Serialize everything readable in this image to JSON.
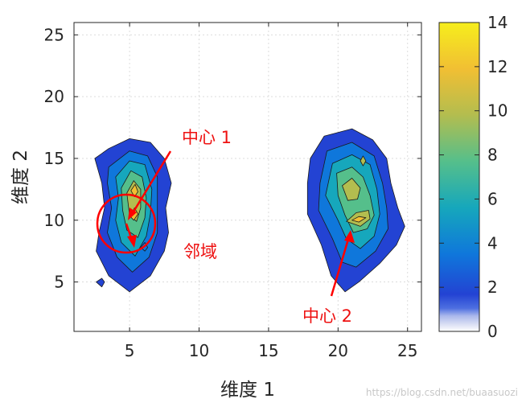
{
  "chart_data": {
    "type": "contour",
    "xlabel": "维度 1",
    "ylabel": "维度 2",
    "xlim": [
      1,
      26
    ],
    "ylim": [
      1,
      26
    ],
    "xticks": [
      5,
      10,
      15,
      20,
      25
    ],
    "yticks": [
      5,
      10,
      15,
      20,
      25
    ],
    "grid": true,
    "colorbar": {
      "colormap": "parula",
      "range": [
        0,
        14
      ],
      "ticks": [
        0,
        2,
        4,
        6,
        8,
        10,
        12,
        14
      ],
      "colors": [
        "#ffffff",
        "#d6dcf3",
        "#aab8ec",
        "#6f8ee8",
        "#3f66e0",
        "#1f4ad6",
        "#0f5bd9",
        "#0f77db",
        "#1092d0",
        "#16a7bc",
        "#2db7a3",
        "#55bf8b",
        "#86c16e",
        "#b3bd4f",
        "#d6b937",
        "#f1bf33",
        "#f8d42a",
        "#f6ee1c"
      ]
    },
    "clusters": [
      {
        "name": "cluster-1",
        "levels": [
          {
            "value": 1,
            "points": [
              [
                2.5,
                15
              ],
              [
                3.5,
                15.8
              ],
              [
                5,
                16.6
              ],
              [
                6.5,
                16.3
              ],
              [
                7.5,
                15
              ],
              [
                8,
                13
              ],
              [
                7.6,
                11
              ],
              [
                7.8,
                9
              ],
              [
                7.5,
                7.5
              ],
              [
                6.5,
                5.5
              ],
              [
                5,
                4.2
              ],
              [
                3.5,
                5.5
              ],
              [
                2.6,
                7.5
              ],
              [
                2.8,
                9
              ],
              [
                3.2,
                11
              ],
              [
                3,
                13
              ]
            ]
          },
          {
            "value": 3,
            "points": [
              [
                3.5,
                14.3
              ],
              [
                5,
                15.6
              ],
              [
                6.3,
                15.2
              ],
              [
                7,
                13.5
              ],
              [
                7,
                11.3
              ],
              [
                7,
                9
              ],
              [
                6.4,
                7
              ],
              [
                5.2,
                5.8
              ],
              [
                4.1,
                7
              ],
              [
                3.4,
                9
              ],
              [
                3.7,
                11
              ],
              [
                3.4,
                13
              ]
            ]
          },
          {
            "value": 5,
            "points": [
              [
                4,
                13.5
              ],
              [
                5,
                14.8
              ],
              [
                6.1,
                14.5
              ],
              [
                6.6,
                12.5
              ],
              [
                6.5,
                10.5
              ],
              [
                6.2,
                8.7
              ],
              [
                5.4,
                7.1
              ],
              [
                4.4,
                8.2
              ],
              [
                4,
                10
              ],
              [
                4.2,
                11.8
              ]
            ]
          },
          {
            "value": 7,
            "points": [
              [
                4.4,
                12.6
              ],
              [
                5.1,
                14
              ],
              [
                5.9,
                13.5
              ],
              [
                6.2,
                11.8
              ],
              [
                6.1,
                10.2
              ],
              [
                5.6,
                8.6
              ],
              [
                4.8,
                9.2
              ],
              [
                4.5,
                10.8
              ]
            ]
          },
          {
            "value": 9,
            "points": [
              [
                4.8,
                12.2
              ],
              [
                5.3,
                13.2
              ],
              [
                5.8,
                12.5
              ],
              [
                5.8,
                11
              ],
              [
                5.5,
                9.9
              ],
              [
                5,
                10.4
              ]
            ]
          },
          {
            "value": 11,
            "points": [
              [
                5.1,
                12.4
              ],
              [
                5.4,
                12.9
              ],
              [
                5.6,
                12.3
              ],
              [
                5.35,
                11.9
              ]
            ]
          },
          {
            "value": 11,
            "points": [
              [
                5.05,
                10.3
              ],
              [
                5.35,
                11
              ],
              [
                5.6,
                10.5
              ],
              [
                5.3,
                10
              ]
            ]
          },
          {
            "value": 1,
            "points": [
              [
                2.6,
                5
              ],
              [
                3,
                5.3
              ],
              [
                3.2,
                5
              ],
              [
                3,
                4.6
              ]
            ]
          },
          {
            "value": 3,
            "points": [
              [
                5.8,
                7.8
              ],
              [
                6.1,
                8.2
              ],
              [
                6.3,
                7.8
              ],
              [
                6.1,
                7.5
              ]
            ]
          }
        ]
      },
      {
        "name": "cluster-2",
        "levels": [
          {
            "value": 1,
            "points": [
              [
                19,
                16.8
              ],
              [
                21,
                17.4
              ],
              [
                22.5,
                16.5
              ],
              [
                23.5,
                15
              ],
              [
                23.8,
                13
              ],
              [
                24.3,
                11
              ],
              [
                24.8,
                9.5
              ],
              [
                24.2,
                8
              ],
              [
                23,
                6.5
              ],
              [
                21.5,
                5
              ],
              [
                20.5,
                4.2
              ],
              [
                19.5,
                5.5
              ],
              [
                18.8,
                8
              ],
              [
                17.8,
                10.5
              ],
              [
                17.8,
                13
              ],
              [
                18,
                15
              ]
            ]
          },
          {
            "value": 3,
            "points": [
              [
                19.2,
                15.6
              ],
              [
                21,
                16.3
              ],
              [
                22.6,
                15.2
              ],
              [
                23.2,
                13
              ],
              [
                23.5,
                11
              ],
              [
                23.6,
                9.3
              ],
              [
                22.7,
                7.5
              ],
              [
                21.3,
                6.2
              ],
              [
                20.3,
                6.6
              ],
              [
                19.6,
                8.5
              ],
              [
                18.6,
                10.8
              ],
              [
                18.7,
                13
              ]
            ]
          },
          {
            "value": 5,
            "points": [
              [
                19.6,
                14.6
              ],
              [
                21,
                15.3
              ],
              [
                22.3,
                14.5
              ],
              [
                22.8,
                12.5
              ],
              [
                23,
                10.5
              ],
              [
                22.6,
                8.7
              ],
              [
                21.6,
                7.7
              ],
              [
                20.6,
                8.5
              ],
              [
                20,
                10
              ],
              [
                19.1,
                12
              ]
            ]
          },
          {
            "value": 7,
            "points": [
              [
                19.9,
                13.8
              ],
              [
                21,
                14.3
              ],
              [
                21.8,
                13.5
              ],
              [
                22.3,
                12
              ],
              [
                22.6,
                10.4
              ],
              [
                22.1,
                9.3
              ],
              [
                21.1,
                9
              ],
              [
                20.5,
                10.4
              ],
              [
                20,
                12
              ]
            ]
          },
          {
            "value": 9,
            "points": [
              [
                20.3,
                12.8
              ],
              [
                21,
                13.4
              ],
              [
                21.6,
                12.6
              ],
              [
                21.4,
                11.7
              ],
              [
                20.7,
                11.6
              ]
            ]
          },
          {
            "value": 9,
            "points": [
              [
                20.6,
                9.9
              ],
              [
                21.3,
                10.6
              ],
              [
                22.2,
                10.8
              ],
              [
                22.3,
                10.1
              ],
              [
                21.6,
                9.5
              ]
            ]
          },
          {
            "value": 11,
            "points": [
              [
                21,
                10
              ],
              [
                21.5,
                10.3
              ],
              [
                22,
                10.2
              ],
              [
                21.5,
                9.85
              ]
            ]
          },
          {
            "value": 9,
            "points": [
              [
                21.6,
                14.8
              ],
              [
                21.8,
                15.2
              ],
              [
                22,
                14.8
              ],
              [
                21.8,
                14.4
              ]
            ]
          }
        ]
      }
    ],
    "annotations": [
      {
        "text": "中心 1",
        "color": "#ff0000"
      },
      {
        "text": "邻域",
        "color": "#ff0000"
      },
      {
        "text": "中心 2",
        "color": "#ff0000"
      }
    ]
  },
  "watermark": "https://blog.csdn.net/buaasuozi"
}
